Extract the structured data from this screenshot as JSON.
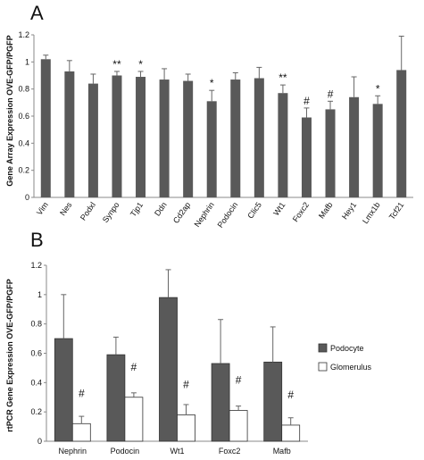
{
  "chart_data": [
    {
      "type": "bar",
      "panel_label": "A",
      "ylabel": "Gene Array Expression OVE-GFP/PGFP",
      "ylim": [
        0,
        1.2
      ],
      "yticks": [
        0,
        0.2,
        0.4,
        0.6,
        0.8,
        1,
        1.2
      ],
      "categories": [
        "Vim",
        "Nes",
        "Podxl",
        "Synpo",
        "Tjp1",
        "Ddn",
        "Cd2ap",
        "Nephrin",
        "Podocin",
        "Clic5",
        "Wt1",
        "Foxc2",
        "Mafb",
        "Hey1",
        "Lmx1b",
        "Tcf21"
      ],
      "values": [
        1.02,
        0.93,
        0.84,
        0.9,
        0.89,
        0.87,
        0.86,
        0.71,
        0.87,
        0.88,
        0.77,
        0.59,
        0.65,
        0.74,
        0.69,
        0.94
      ],
      "errors": [
        0.03,
        0.08,
        0.07,
        0.03,
        0.04,
        0.08,
        0.05,
        0.08,
        0.05,
        0.08,
        0.06,
        0.07,
        0.06,
        0.15,
        0.06,
        0.25
      ],
      "annotations": [
        "",
        "",
        "",
        "**",
        "*",
        "",
        "",
        "*",
        "",
        "",
        "**",
        "#",
        "#",
        "",
        "*",
        ""
      ],
      "bar_color": "#595959"
    },
    {
      "type": "bar",
      "panel_label": "B",
      "ylabel": "rtPCR Gene Expression OVE-GFP/PGFP",
      "ylim": [
        0,
        1.2
      ],
      "yticks": [
        0,
        0.2,
        0.4,
        0.6,
        0.8,
        1,
        1.2
      ],
      "categories": [
        "Nephrin",
        "Podocin",
        "Wt1",
        "Foxc2",
        "Mafb"
      ],
      "series": [
        {
          "name": "Podocyte",
          "values": [
            0.7,
            0.59,
            0.98,
            0.53,
            0.54
          ],
          "errors": [
            0.3,
            0.12,
            0.19,
            0.3,
            0.24
          ],
          "color": "#595959"
        },
        {
          "name": "Glomerulus",
          "values": [
            0.12,
            0.3,
            0.18,
            0.21,
            0.11
          ],
          "errors": [
            0.05,
            0.03,
            0.07,
            0.03,
            0.05
          ],
          "color": "#ffffff"
        }
      ],
      "annotations": [
        "#",
        "#",
        "#",
        "#",
        "#"
      ],
      "legend": "right"
    }
  ]
}
